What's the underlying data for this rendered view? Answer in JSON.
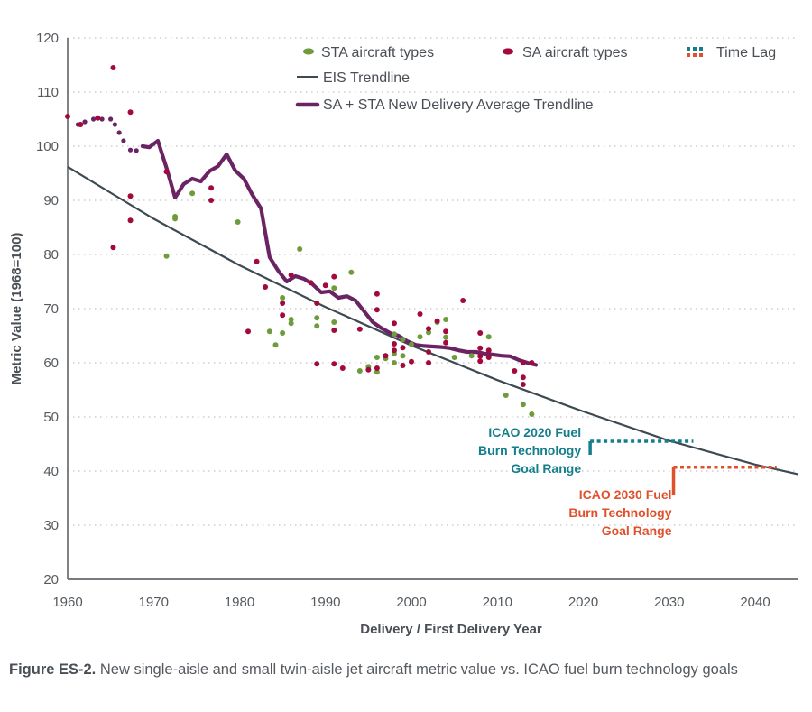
{
  "chart_data": {
    "type": "scatter",
    "title": "",
    "xlabel": "Delivery / First Delivery Year",
    "ylabel": "Metric Value (1968=100)",
    "xlim": [
      1960,
      2045
    ],
    "ylim": [
      20,
      120
    ],
    "grid": true,
    "x_ticks": [
      "1960",
      "1970",
      "1980",
      "1990",
      "2000",
      "2010",
      "2020",
      "2030",
      "2040"
    ],
    "y_ticks": [
      "20",
      "30",
      "40",
      "50",
      "60",
      "70",
      "80",
      "90",
      "100",
      "110",
      "120"
    ],
    "legend": {
      "placement": "top-right",
      "entries": [
        {
          "label": "STA aircraft types",
          "kind": "dot",
          "color": "#6e9b3c"
        },
        {
          "label": "SA aircraft types",
          "kind": "dot",
          "color": "#a3093a"
        },
        {
          "label": "Time Lag",
          "kind": "dotted-pair",
          "colors": [
            "#137e8c",
            "#e0502b"
          ]
        },
        {
          "label": "EIS Trendline",
          "kind": "line",
          "color": "#3e4a52"
        },
        {
          "label": "SA + STA New Delivery Average Trendline",
          "kind": "thick-line",
          "color": "#6b2463"
        }
      ]
    },
    "series": [
      {
        "name": "STA aircraft types",
        "color": "#6e9b3c",
        "points": [
          [
            1971.5,
            79.7
          ],
          [
            1972.5,
            87
          ],
          [
            1972.5,
            86.6
          ],
          [
            1974.5,
            91.3
          ],
          [
            1979.8,
            86
          ],
          [
            1983.5,
            65.8
          ],
          [
            1984.2,
            63.3
          ],
          [
            1985,
            72
          ],
          [
            1985,
            65.5
          ],
          [
            1986,
            68
          ],
          [
            1986,
            67.3
          ],
          [
            1987,
            81
          ],
          [
            1989,
            68.3
          ],
          [
            1989,
            66.8
          ],
          [
            1991,
            73.8
          ],
          [
            1991,
            67.5
          ],
          [
            1993,
            76.7
          ],
          [
            1994,
            58.5
          ],
          [
            1995,
            59.3
          ],
          [
            1996,
            61
          ],
          [
            1996,
            58.3
          ],
          [
            1997,
            61.3
          ],
          [
            1997,
            60.8
          ],
          [
            1998,
            65.3
          ],
          [
            1998,
            61.7
          ],
          [
            1998,
            60
          ],
          [
            1999,
            64.3
          ],
          [
            1999,
            61.3
          ],
          [
            2000,
            63.4
          ],
          [
            2001,
            64.8
          ],
          [
            2002,
            65.6
          ],
          [
            2003,
            67.5
          ],
          [
            2004,
            68
          ],
          [
            2004,
            64.7
          ],
          [
            2005,
            61
          ],
          [
            2007,
            61.3
          ],
          [
            2009,
            64.8
          ],
          [
            2011,
            54
          ],
          [
            2013,
            52.3
          ],
          [
            2014,
            50.5
          ]
        ]
      },
      {
        "name": "SA aircraft types",
        "color": "#a3093a",
        "points": [
          [
            1960,
            105.5
          ],
          [
            1961.5,
            104
          ],
          [
            1963.5,
            105.2
          ],
          [
            1965.3,
            114.5
          ],
          [
            1965.3,
            81.3
          ],
          [
            1967.3,
            106.3
          ],
          [
            1967.3,
            90.8
          ],
          [
            1967.3,
            86.3
          ],
          [
            1971.5,
            95.3
          ],
          [
            1976.7,
            92.3
          ],
          [
            1976.7,
            90
          ],
          [
            1981,
            65.8
          ],
          [
            1982,
            78.7
          ],
          [
            1983,
            74
          ],
          [
            1985,
            71
          ],
          [
            1985,
            68.8
          ],
          [
            1986,
            76.2
          ],
          [
            1988.3,
            74.8
          ],
          [
            1989,
            71
          ],
          [
            1989,
            59.8
          ],
          [
            1990,
            74.3
          ],
          [
            1991,
            75.9
          ],
          [
            1991,
            66
          ],
          [
            1991,
            59.8
          ],
          [
            1992,
            59
          ],
          [
            1994,
            66.2
          ],
          [
            1995,
            58.7
          ],
          [
            1996,
            72.7
          ],
          [
            1996,
            69.8
          ],
          [
            1996,
            59
          ],
          [
            1997,
            61.3
          ],
          [
            1998,
            67.3
          ],
          [
            1998,
            63.5
          ],
          [
            1998,
            62.3
          ],
          [
            1999,
            62.8
          ],
          [
            1999,
            59.5
          ],
          [
            2000,
            60.2
          ],
          [
            2001,
            69
          ],
          [
            2002,
            66.3
          ],
          [
            2002,
            62
          ],
          [
            2002,
            60
          ],
          [
            2003,
            67.7
          ],
          [
            2004,
            65.8
          ],
          [
            2004,
            63.7
          ],
          [
            2006,
            71.5
          ],
          [
            2008,
            65.5
          ],
          [
            2008,
            62.7
          ],
          [
            2008,
            61.2
          ],
          [
            2008,
            60.3
          ],
          [
            2009,
            62.3
          ],
          [
            2009,
            61
          ],
          [
            2012,
            58.5
          ],
          [
            2013,
            57.3
          ],
          [
            2013,
            56
          ],
          [
            2013,
            60
          ],
          [
            2014,
            60
          ]
        ]
      },
      {
        "name": "EIS Trendline",
        "color": "#3e4a52",
        "points": [
          [
            1960,
            96.2
          ],
          [
            1970,
            86.6
          ],
          [
            1980,
            78
          ],
          [
            1990,
            70.3
          ],
          [
            2000,
            63.2
          ],
          [
            2010,
            56.8
          ],
          [
            2020,
            51
          ],
          [
            2030,
            45.6
          ],
          [
            2040,
            41.2
          ],
          [
            2045,
            39.4
          ]
        ]
      },
      {
        "name": "SA + STA New Delivery Average Trendline",
        "color": "#6b2463",
        "dotted_part": [
          [
            1961.2,
            104
          ],
          [
            1962,
            104.5
          ],
          [
            1963,
            105
          ],
          [
            1964,
            105
          ],
          [
            1965,
            105
          ],
          [
            1965.5,
            104
          ],
          [
            1966,
            102.5
          ],
          [
            1966.5,
            101
          ],
          [
            1967.3,
            99.3
          ],
          [
            1968,
            99.2
          ]
        ],
        "points": [
          [
            1968.7,
            100
          ],
          [
            1969.5,
            99.8
          ],
          [
            1970.5,
            101
          ],
          [
            1971.5,
            96
          ],
          [
            1972.5,
            90.5
          ],
          [
            1973.5,
            93
          ],
          [
            1974.5,
            94
          ],
          [
            1975.5,
            93.5
          ],
          [
            1976.5,
            95.4
          ],
          [
            1977.5,
            96.3
          ],
          [
            1978.5,
            98.5
          ],
          [
            1979.5,
            95.5
          ],
          [
            1980.5,
            94
          ],
          [
            1981.5,
            91
          ],
          [
            1982.5,
            88.5
          ],
          [
            1983.5,
            79.5
          ],
          [
            1984.5,
            77
          ],
          [
            1985.5,
            75
          ],
          [
            1986.5,
            76
          ],
          [
            1987.5,
            75.5
          ],
          [
            1988.5,
            74.5
          ],
          [
            1989.5,
            73
          ],
          [
            1990.5,
            73.2
          ],
          [
            1991.5,
            72
          ],
          [
            1992.5,
            72.3
          ],
          [
            1993.5,
            71.5
          ],
          [
            1994.5,
            69.5
          ],
          [
            1995.5,
            67.5
          ],
          [
            1996.5,
            66.4
          ],
          [
            1997.5,
            65.5
          ],
          [
            1998.5,
            65
          ],
          [
            1999.5,
            64
          ],
          [
            2000.5,
            63.3
          ],
          [
            2001.5,
            63.1
          ],
          [
            2002.5,
            63
          ],
          [
            2003.5,
            62.9
          ],
          [
            2004.5,
            62.7
          ],
          [
            2005.5,
            62.3
          ],
          [
            2006.5,
            62
          ],
          [
            2007.5,
            62
          ],
          [
            2008.5,
            61.7
          ],
          [
            2009.5,
            61.5
          ],
          [
            2010.5,
            61.3
          ],
          [
            2011.5,
            61.2
          ],
          [
            2012.5,
            60.5
          ],
          [
            2013.5,
            60
          ],
          [
            2014.5,
            59.6
          ]
        ]
      }
    ],
    "annotations": [
      {
        "id": "icao2020",
        "lines": [
          "ICAO 2020 Fuel",
          "Burn Technology",
          "Goal Range"
        ],
        "color": "#137e8c",
        "year_start": 2020.8,
        "year_end": 2032.8,
        "value_low": 43,
        "value_high": 45.5
      },
      {
        "id": "icao2030",
        "lines": [
          "ICAO 2030 Fuel",
          "Burn Technology",
          "Goal Range"
        ],
        "color": "#e0502b",
        "year_start": 2030.5,
        "year_end": 2042.5,
        "value_low": 35.5,
        "value_high": 40.7
      }
    ]
  },
  "caption": {
    "label": "Figure ES-2.",
    "text": " New single-aisle and small twin-aisle jet aircraft metric value vs. ICAO fuel burn technology goals"
  }
}
